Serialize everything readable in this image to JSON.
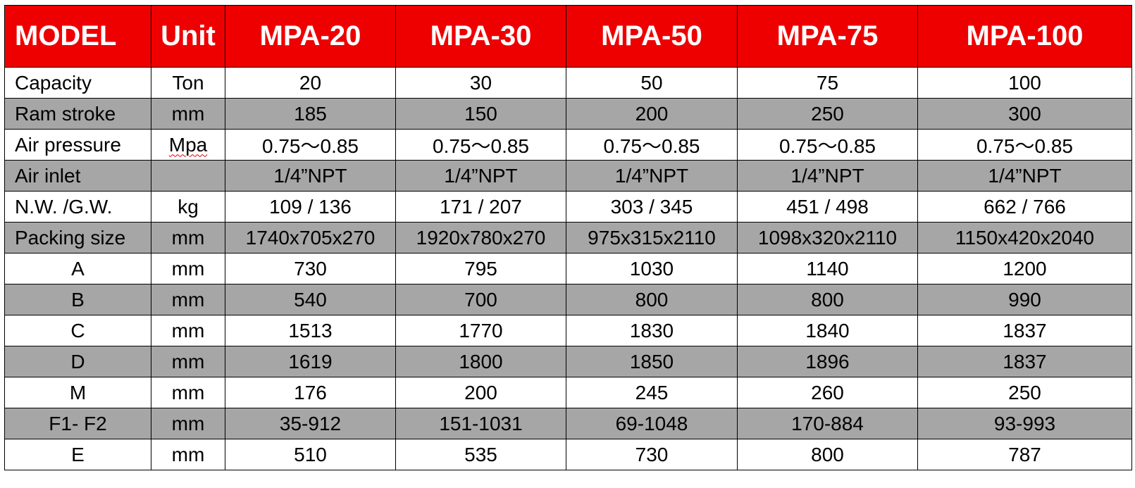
{
  "table": {
    "header": [
      "MODEL",
      "Unit",
      "MPA-20",
      "MPA-30",
      "MPA-50",
      "MPA-75",
      "MPA-100"
    ],
    "rows": [
      {
        "label": "Capacity",
        "unit": "Ton",
        "values": [
          "20",
          "30",
          "50",
          "75",
          "100"
        ]
      },
      {
        "label": "Ram stroke",
        "unit": "mm",
        "values": [
          "185",
          "150",
          "200",
          "250",
          "300"
        ]
      },
      {
        "label": "Air pressure",
        "unit": "Mpa",
        "values": [
          "0.75～0.85",
          "0.75～0.85",
          "0.75～0.85",
          "0.75～0.85",
          "0.75～0.85"
        ]
      },
      {
        "label": "Air inlet",
        "unit": "",
        "values": [
          "1/4”NPT",
          "1/4”NPT",
          "1/4”NPT",
          "1/4”NPT",
          "1/4”NPT"
        ]
      },
      {
        "label": "N.W. /G.W.",
        "unit": "kg",
        "values": [
          "109 / 136",
          "171 / 207",
          "303 / 345",
          "451 / 498",
          "662 / 766"
        ]
      },
      {
        "label": "Packing size",
        "unit": "mm",
        "values": [
          "1740x705x270",
          "1920x780x270",
          "975x315x2110",
          "1098x320x2110",
          "1150x420x2040"
        ]
      },
      {
        "label": "A",
        "unit": "mm",
        "values": [
          "730",
          "795",
          "1030",
          "1140",
          "1200"
        ]
      },
      {
        "label": "B",
        "unit": "mm",
        "values": [
          "540",
          "700",
          "800",
          "800",
          "990"
        ]
      },
      {
        "label": "C",
        "unit": "mm",
        "values": [
          "1513",
          "1770",
          "1830",
          "1840",
          "1837"
        ]
      },
      {
        "label": "D",
        "unit": "mm",
        "values": [
          "1619",
          "1800",
          "1850",
          "1896",
          "1837"
        ]
      },
      {
        "label": "M",
        "unit": "mm",
        "values": [
          "176",
          "200",
          "245",
          "260",
          "250"
        ]
      },
      {
        "label": "F1- F2",
        "unit": "mm",
        "values": [
          "35-912",
          "151-1031",
          "69-1048",
          "170-884",
          "93-993"
        ]
      },
      {
        "label": "E",
        "unit": "mm",
        "values": [
          "510",
          "535",
          "730",
          "800",
          "787"
        ]
      }
    ]
  },
  "colors": {
    "header_bg": "#ee0000",
    "header_text": "#ffffff",
    "alt_row_bg": "#a6a6a6",
    "border": "#000000"
  }
}
